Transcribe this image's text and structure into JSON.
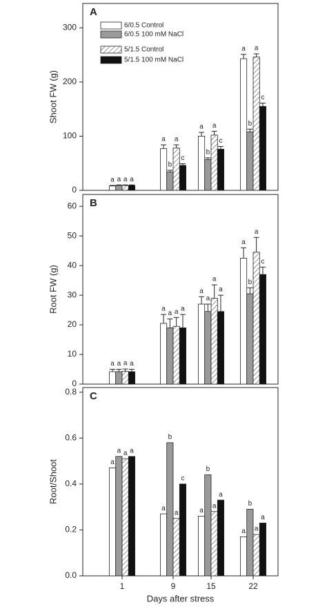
{
  "chart_data": [
    {
      "type": "bar",
      "panel_label": "A",
      "y_label": "Shoot FW (g)",
      "ylim": [
        0,
        345
      ],
      "yticks": [
        0,
        100,
        200,
        300
      ],
      "series": [
        {
          "name": "6/0.5 Control",
          "color": "#ffffff",
          "values": [
            8,
            77,
            100,
            243
          ],
          "errors": [
            1,
            7,
            7,
            8
          ],
          "labels": [
            "a",
            "a",
            "a",
            "a"
          ]
        },
        {
          "name": "6/0.5 100 mM NaCl",
          "color": "#9a9a9a",
          "values": [
            9,
            34,
            57,
            108
          ],
          "errors": [
            1,
            3,
            3,
            5
          ],
          "labels": [
            "a",
            "b",
            "b",
            "b"
          ]
        },
        {
          "name": "5/1.5 Control",
          "color": "hatch",
          "values": [
            9,
            78,
            102,
            246
          ],
          "errors": [
            1,
            6,
            7,
            6
          ],
          "labels": [
            "a",
            "a",
            "a",
            "a"
          ]
        },
        {
          "name": "5/1.5 100 mM NaCl",
          "color": "#111111",
          "values": [
            9,
            46,
            76,
            155
          ],
          "errors": [
            1,
            3,
            5,
            6
          ],
          "labels": [
            "a",
            "c",
            "c",
            "c"
          ]
        }
      ]
    },
    {
      "type": "bar",
      "panel_label": "B",
      "y_label": "Root FW (g)",
      "ylim": [
        0,
        64
      ],
      "yticks": [
        0,
        10,
        20,
        30,
        40,
        50,
        60
      ],
      "series": [
        {
          "color": "#ffffff",
          "values": [
            4.2,
            20.5,
            27,
            42.5
          ],
          "errors": [
            0.8,
            3,
            2.5,
            3.5
          ],
          "labels": [
            "a",
            "a",
            "a",
            "a"
          ]
        },
        {
          "color": "#9a9a9a",
          "values": [
            4.2,
            19,
            24.5,
            30.5
          ],
          "errors": [
            0.8,
            3,
            2.5,
            2
          ],
          "labels": [
            "a",
            "a",
            "a",
            "b"
          ]
        },
        {
          "color": "hatch",
          "values": [
            4.3,
            19.5,
            29,
            44.5
          ],
          "errors": [
            0.8,
            3,
            4.5,
            5
          ],
          "labels": [
            "a",
            "a",
            "a",
            "a"
          ]
        },
        {
          "color": "#111111",
          "values": [
            4.2,
            19,
            24.5,
            37
          ],
          "errors": [
            0.8,
            4.5,
            5.5,
            2.5
          ],
          "labels": [
            "a",
            "a",
            "a",
            "c"
          ]
        }
      ]
    },
    {
      "type": "bar",
      "panel_label": "C",
      "y_label": "Root/Shoot",
      "x_label": "Days after stress",
      "categories": [
        "1",
        "9",
        "15",
        "22"
      ],
      "ylim": [
        0,
        0.82
      ],
      "yticks": [
        {
          "value": 0,
          "label": "0.0"
        },
        0.2,
        0.4,
        0.6,
        0.8
      ],
      "series": [
        {
          "color": "#ffffff",
          "values": [
            0.47,
            0.27,
            0.26,
            0.17
          ],
          "labels": [
            "a",
            "a",
            "a",
            "a"
          ]
        },
        {
          "color": "#9a9a9a",
          "values": [
            0.52,
            0.58,
            0.44,
            0.29
          ],
          "labels": [
            "a",
            "b",
            "b",
            "b"
          ]
        },
        {
          "color": "hatch",
          "values": [
            0.51,
            0.25,
            0.28,
            0.18
          ],
          "labels": [
            "a",
            "a",
            "a",
            "a"
          ]
        },
        {
          "color": "#111111",
          "values": [
            0.52,
            0.4,
            0.33,
            0.23
          ],
          "labels": [
            "a",
            "c",
            "a",
            "a"
          ]
        }
      ]
    }
  ]
}
